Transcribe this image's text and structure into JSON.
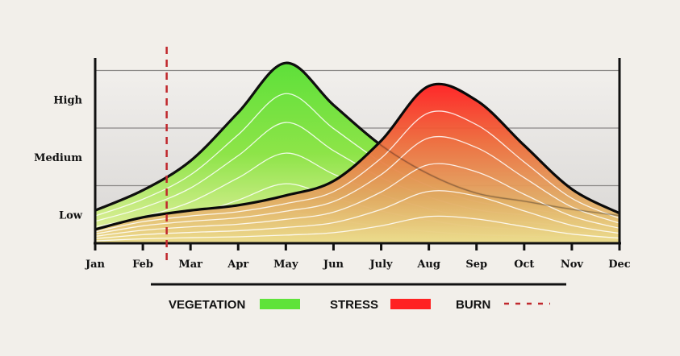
{
  "chart_data": {
    "type": "area",
    "title": "",
    "xlabel": "",
    "ylabel": "",
    "categories": [
      "Jan",
      "Feb",
      "Mar",
      "Apr",
      "May",
      "Jun",
      "July",
      "Aug",
      "Sep",
      "Oct",
      "Nov",
      "Dec"
    ],
    "y_levels": [
      {
        "label": "Low",
        "value": 0.5
      },
      {
        "label": "Medium",
        "value": 1.5
      },
      {
        "label": "High",
        "value": 2.5
      }
    ],
    "gridlines": [
      1,
      2,
      3
    ],
    "ylim": [
      0,
      3.3
    ],
    "series": [
      {
        "name": "VEGETATION",
        "color": "#5fe33a",
        "values": [
          0.57,
          0.92,
          1.43,
          2.27,
          3.13,
          2.4,
          1.7,
          1.2,
          0.87,
          0.73,
          0.59,
          0.48
        ]
      },
      {
        "name": "STRESS",
        "color": "#ff2222",
        "values": [
          0.24,
          0.45,
          0.57,
          0.66,
          0.83,
          1.08,
          1.78,
          2.73,
          2.48,
          1.7,
          0.94,
          0.52
        ]
      }
    ],
    "burn": {
      "name": "BURN",
      "month_index": 1.5,
      "color": "#c0282d"
    },
    "legend": {
      "placement": "bottom",
      "entries": [
        "VEGETATION",
        "STRESS",
        "BURN"
      ]
    }
  }
}
